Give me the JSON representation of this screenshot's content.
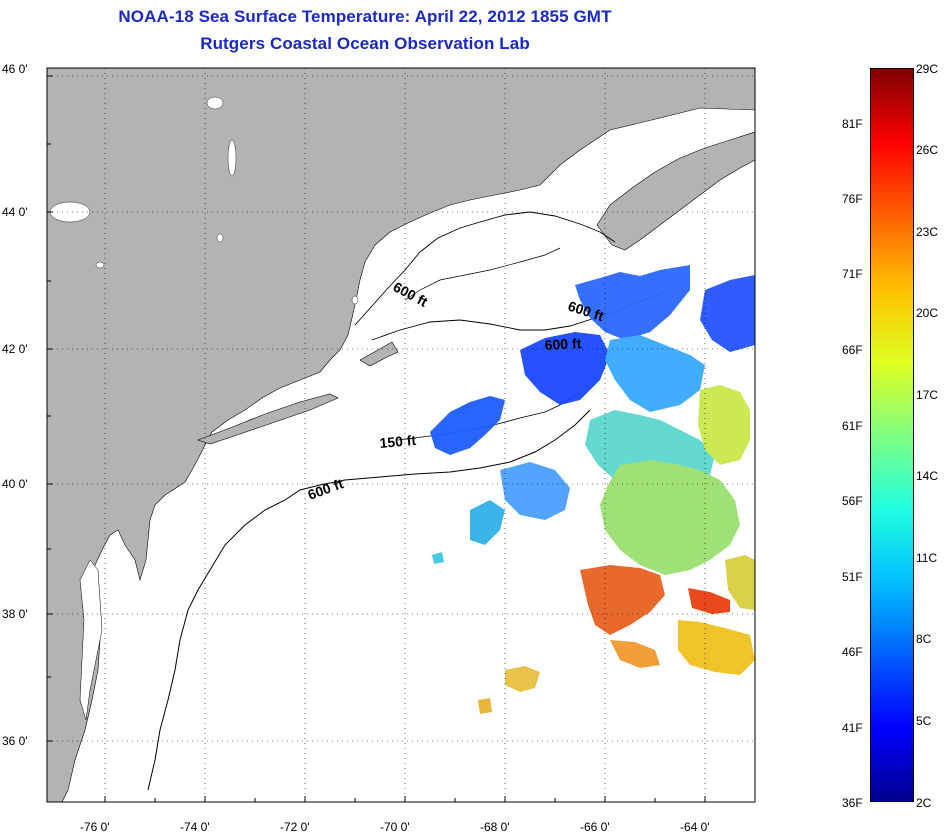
{
  "title": {
    "line1": "NOAA-18 Sea Surface Temperature:  April 22, 2012 1855 GMT",
    "line2": "Rutgers Coastal Ocean Observation Lab"
  },
  "axes": {
    "latitude_labels": [
      "46 0'",
      "44 0'",
      "42 0'",
      "40 0'",
      "38 0'",
      "36 0'"
    ],
    "longitude_labels": [
      "-76 0'",
      "-74 0'",
      "-72 0'",
      "-70 0'",
      "-68 0'",
      "-66 0'",
      "-64 0'"
    ],
    "grid": "dotted"
  },
  "contours": {
    "labels": [
      "600 ft",
      "600 ft",
      "600 ft",
      "150 ft",
      "600 ft"
    ]
  },
  "colorbar": {
    "fahrenheit_labels": [
      "81F",
      "76F",
      "71F",
      "66F",
      "61F",
      "56F",
      "51F",
      "46F",
      "41F",
      "36F"
    ],
    "celsius_labels": [
      "29C",
      "26C",
      "23C",
      "20C",
      "17C",
      "14C",
      "11C",
      "8C",
      "5C",
      "2C"
    ],
    "gradient": [
      "#00008f",
      "#0000ff",
      "#0060ff",
      "#00c0ff",
      "#20ffe0",
      "#80ff80",
      "#e0ff20",
      "#ffc000",
      "#ff6000",
      "#ff0000",
      "#800000"
    ]
  },
  "colors": {
    "land": "#b3b3b3",
    "title": "#1a28c8",
    "frame": "#000000"
  }
}
